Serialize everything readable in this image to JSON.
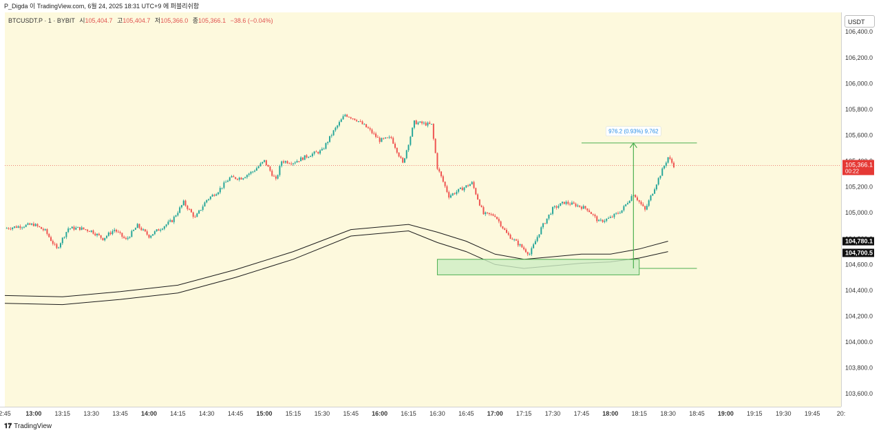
{
  "header": {
    "caption": "P_Digda 이 TradingView.com, 6월 24, 2025 18:31 UTC+9 에 퍼블리쉬함"
  },
  "legend": {
    "symbol": "BTCUSDT.P · 1 · BYBIT",
    "open_label": "시",
    "open": "105,404.7",
    "high_label": "고",
    "high": "105,404.7",
    "low_label": "저",
    "low": "105,366.0",
    "close_label": "종",
    "close": "105,366.1",
    "change": "−38.6 (−0.04%)"
  },
  "price_axis": {
    "currency": "USDT",
    "ticks": [
      "106,400.0",
      "106,200.0",
      "106,000.0",
      "105,800.0",
      "105,600.0",
      "105,400.0",
      "105,200.0",
      "105,000.0",
      "104,800.0",
      "104,600.0",
      "104,400.0",
      "104,200.0",
      "104,000.0",
      "103,800.0",
      "103,600.0"
    ],
    "current_price": "105,366.1",
    "countdown": "00:22",
    "band_upper": "104,780.1",
    "band_lower": "104,700.5"
  },
  "time_axis": {
    "ticks": [
      "2:45",
      "13:00",
      "13:15",
      "13:30",
      "13:45",
      "14:00",
      "14:15",
      "14:30",
      "14:45",
      "15:00",
      "15:15",
      "15:30",
      "15:45",
      "16:00",
      "16:15",
      "16:30",
      "16:45",
      "17:00",
      "17:15",
      "17:30",
      "17:45",
      "18:00",
      "18:15",
      "18:30",
      "18:45",
      "19:00",
      "19:15",
      "19:30",
      "19:45",
      "20:"
    ],
    "bold_ticks": [
      "13:00",
      "14:00",
      "15:00",
      "16:00",
      "17:00",
      "18:00",
      "19:00"
    ]
  },
  "measure_tool": {
    "label": "976.2 (0.93%) 9,762"
  },
  "colors": {
    "up": "#26a69a",
    "down": "#ef5350",
    "price_tag": "#e53935",
    "measure": "#4caf50",
    "zone_fill": "#cdeec4",
    "band": "#1a1a1a"
  },
  "footer": {
    "brand": "TradingView",
    "logo_icon": "tradingview-logo-icon"
  },
  "chart_data": {
    "type": "candlestick",
    "ylim": [
      103500,
      106550
    ],
    "price_series": [
      [
        12.75,
        104880
      ],
      [
        13.0,
        104910
      ],
      [
        13.1,
        104860
      ],
      [
        13.2,
        104720
      ],
      [
        13.3,
        104880
      ],
      [
        13.4,
        104880
      ],
      [
        13.5,
        104860
      ],
      [
        13.6,
        104800
      ],
      [
        13.7,
        104870
      ],
      [
        13.8,
        104790
      ],
      [
        13.9,
        104900
      ],
      [
        14.0,
        104820
      ],
      [
        14.1,
        104880
      ],
      [
        14.2,
        104940
      ],
      [
        14.3,
        105080
      ],
      [
        14.4,
        104960
      ],
      [
        14.5,
        105100
      ],
      [
        14.6,
        105170
      ],
      [
        14.7,
        105270
      ],
      [
        14.8,
        105270
      ],
      [
        14.9,
        105320
      ],
      [
        15.0,
        105400
      ],
      [
        15.1,
        105250
      ],
      [
        15.15,
        105400
      ],
      [
        15.25,
        105390
      ],
      [
        15.4,
        105450
      ],
      [
        15.5,
        105480
      ],
      [
        15.6,
        105630
      ],
      [
        15.7,
        105760
      ],
      [
        15.8,
        105720
      ],
      [
        15.9,
        105650
      ],
      [
        16.0,
        105560
      ],
      [
        16.1,
        105580
      ],
      [
        16.2,
        105380
      ],
      [
        16.3,
        105700
      ],
      [
        16.45,
        105680
      ],
      [
        16.5,
        105350
      ],
      [
        16.6,
        105130
      ],
      [
        16.7,
        105180
      ],
      [
        16.8,
        105230
      ],
      [
        16.9,
        104990
      ],
      [
        17.0,
        104980
      ],
      [
        17.1,
        104840
      ],
      [
        17.2,
        104760
      ],
      [
        17.3,
        104680
      ],
      [
        17.4,
        104880
      ],
      [
        17.5,
        105030
      ],
      [
        17.6,
        105080
      ],
      [
        17.7,
        105060
      ],
      [
        17.8,
        105030
      ],
      [
        17.9,
        104930
      ],
      [
        18.0,
        104960
      ],
      [
        18.1,
        105020
      ],
      [
        18.2,
        105150
      ],
      [
        18.3,
        105020
      ],
      [
        18.4,
        105230
      ],
      [
        18.5,
        105430
      ],
      [
        18.55,
        105366
      ]
    ],
    "band_upper": [
      [
        12.75,
        104360
      ],
      [
        13.25,
        104350
      ],
      [
        13.75,
        104390
      ],
      [
        14.25,
        104440
      ],
      [
        14.75,
        104560
      ],
      [
        15.25,
        104700
      ],
      [
        15.75,
        104870
      ],
      [
        16.25,
        104910
      ],
      [
        16.5,
        104850
      ],
      [
        16.75,
        104780
      ],
      [
        17.0,
        104680
      ],
      [
        17.25,
        104640
      ],
      [
        17.5,
        104660
      ],
      [
        17.75,
        104680
      ],
      [
        18.0,
        104680
      ],
      [
        18.25,
        104720
      ],
      [
        18.5,
        104780
      ]
    ],
    "band_lower": [
      [
        12.75,
        104300
      ],
      [
        13.25,
        104290
      ],
      [
        13.75,
        104330
      ],
      [
        14.25,
        104380
      ],
      [
        14.75,
        104500
      ],
      [
        15.25,
        104640
      ],
      [
        15.75,
        104820
      ],
      [
        16.25,
        104860
      ],
      [
        16.5,
        104770
      ],
      [
        16.75,
        104700
      ],
      [
        17.0,
        104600
      ],
      [
        17.25,
        104570
      ],
      [
        17.5,
        104590
      ],
      [
        17.75,
        104610
      ],
      [
        18.0,
        104620
      ],
      [
        18.25,
        104650
      ],
      [
        18.5,
        104700
      ]
    ],
    "measure_line_high": 105540,
    "measure_line_low": 104570,
    "zone": {
      "x_from": 16.5,
      "x_to": 18.25,
      "y_from": 104520,
      "y_to": 104640
    }
  }
}
